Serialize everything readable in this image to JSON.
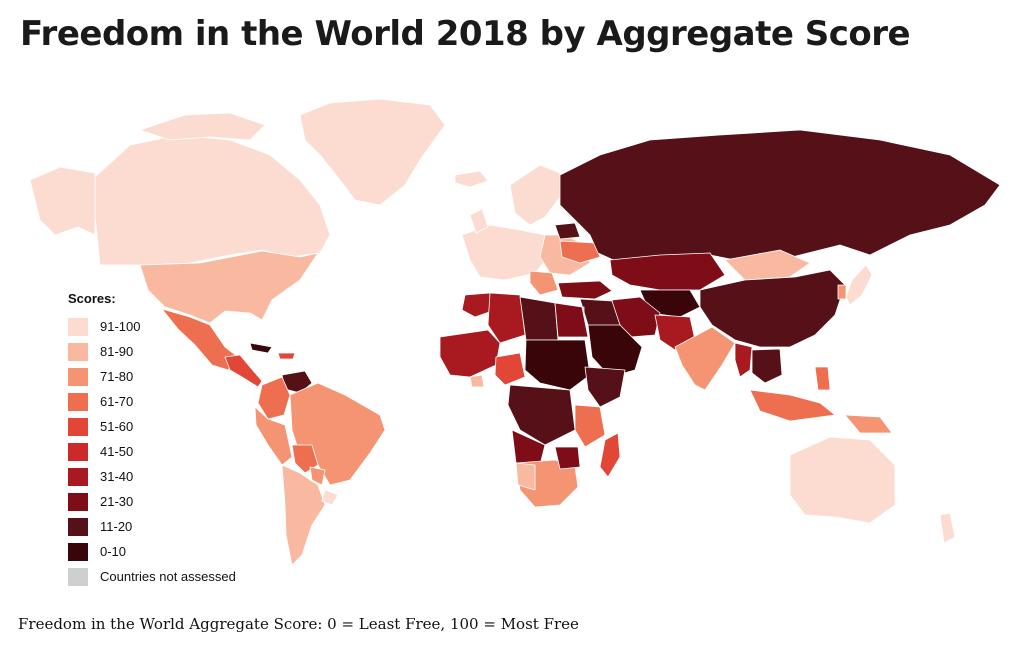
{
  "title": "Freedom in the World 2018 by Aggregate Score",
  "legend": {
    "title": "Scores:",
    "items": [
      {
        "label": "91-100",
        "color": "#fcdcd0"
      },
      {
        "label": "81-90",
        "color": "#f9b9a0"
      },
      {
        "label": "71-80",
        "color": "#f49473"
      },
      {
        "label": "61-70",
        "color": "#ee6f50"
      },
      {
        "label": "51-60",
        "color": "#e24636"
      },
      {
        "label": "41-50",
        "color": "#cc2a2a"
      },
      {
        "label": "31-40",
        "color": "#a81a1f"
      },
      {
        "label": "21-30",
        "color": "#7f0d18"
      },
      {
        "label": "11-20",
        "color": "#551018"
      },
      {
        "label": "0-10",
        "color": "#3a0509"
      },
      {
        "label": "Countries not assessed",
        "color": "#cfcfcf"
      }
    ]
  },
  "footnote": "Freedom in the World Aggregate Score: 0 = Least Free, 100 = Most Free"
}
